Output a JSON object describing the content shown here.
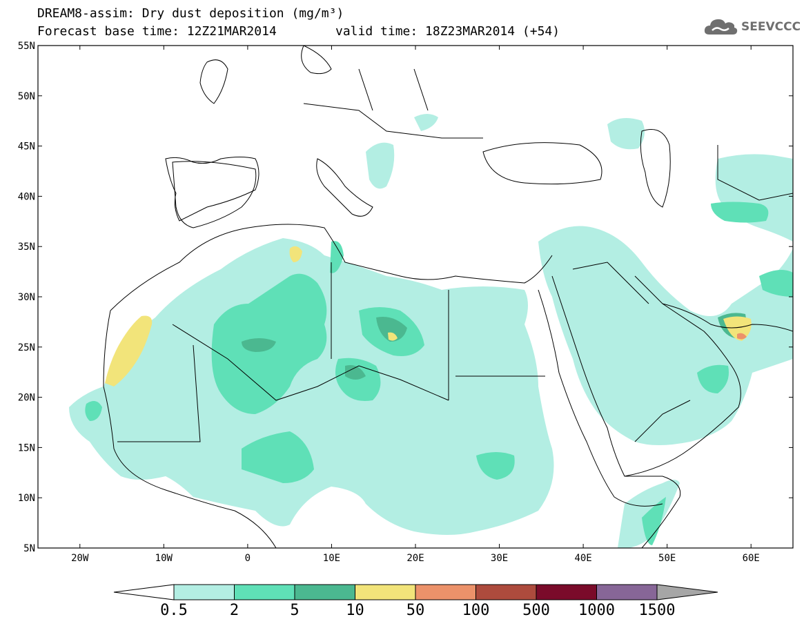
{
  "header": {
    "title": "DREAM8-assim: Dry dust deposition (mg/m³)",
    "base_time": "Forecast base time: 12Z21MAR2014",
    "valid_time": "valid time: 18Z23MAR2014 (+54)"
  },
  "logo": {
    "text": "SEEVCCC",
    "icon": "cloud-icon"
  },
  "map": {
    "lon_range": [
      -25,
      65
    ],
    "lat_range": [
      5,
      55
    ],
    "lat_labels": [
      "55N",
      "50N",
      "45N",
      "40N",
      "35N",
      "30N",
      "25N",
      "20N",
      "15N",
      "10N",
      "5N"
    ],
    "lon_labels": [
      "20W",
      "10W",
      "0",
      "10E",
      "20E",
      "30E",
      "40E",
      "50E",
      "60E"
    ]
  },
  "legend": {
    "levels": [
      "0.5",
      "2",
      "5",
      "10",
      "50",
      "100",
      "500",
      "1000",
      "1500"
    ],
    "colors": [
      "#b3eee3",
      "#5fe0b7",
      "#4bb890",
      "#f2e47a",
      "#ec926a",
      "#ad4b3d",
      "#7a0b2a",
      "#876697",
      "#a6a6a6"
    ],
    "under_color": "#ffffff",
    "over_color": "#a6a6a6"
  }
}
